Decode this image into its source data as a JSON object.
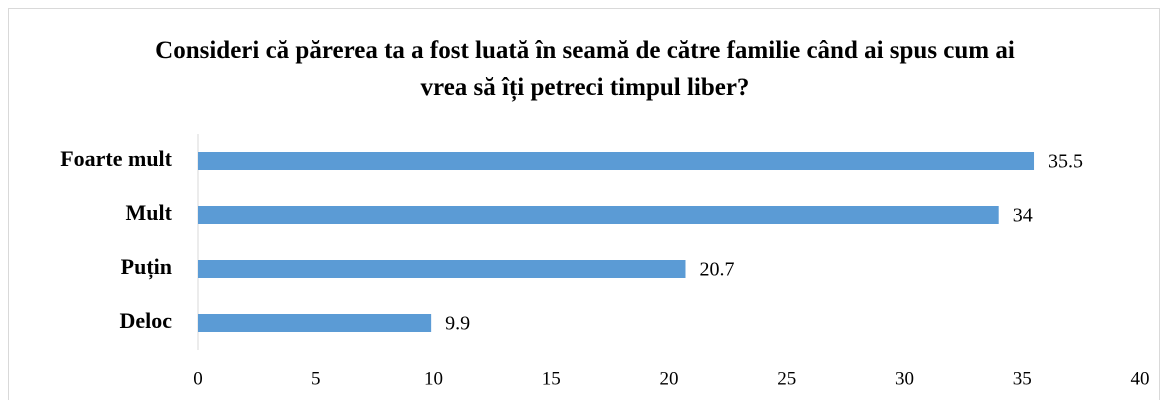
{
  "chart_data": {
    "type": "barh",
    "title": "Consideri că părerea ta a fost luată în seamă de către familie când ai spus cum ai vrea să îți petreci timpul liber?",
    "categories": [
      "Foarte mult",
      "Mult",
      "Puțin",
      "Deloc"
    ],
    "values": [
      35.5,
      34,
      20.7,
      9.9
    ],
    "color": "#5b9bd5",
    "xlim": [
      0,
      40
    ],
    "xticks": [
      0,
      5,
      10,
      15,
      20,
      25,
      30,
      35,
      40
    ],
    "grid": false
  }
}
